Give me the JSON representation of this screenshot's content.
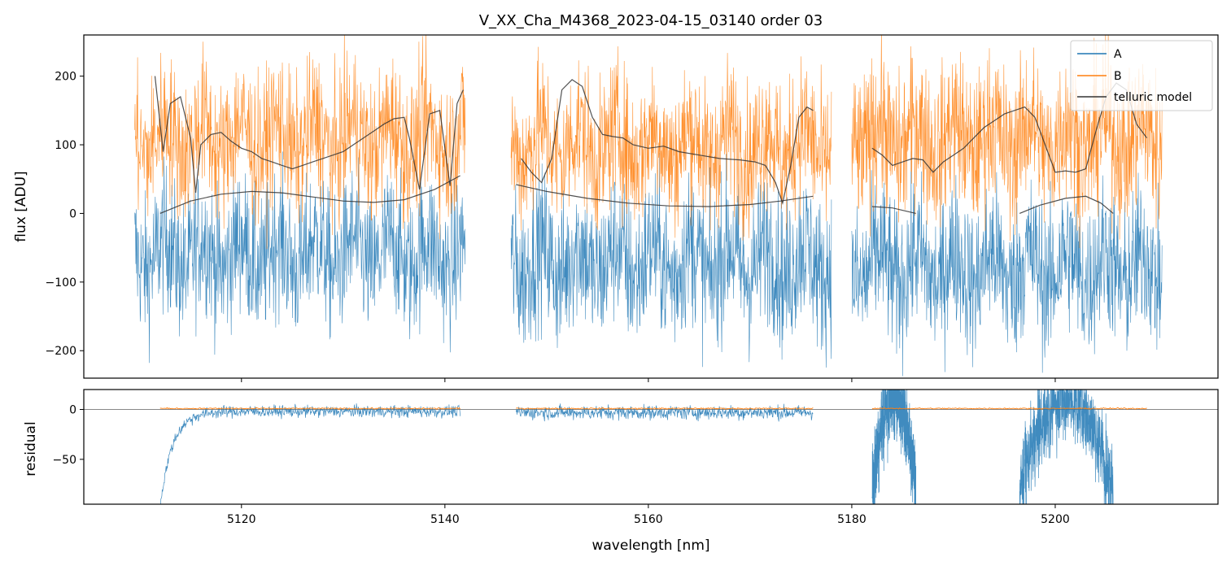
{
  "chart_data": [
    {
      "type": "line",
      "panel": "top",
      "title": "V_XX_Cha_M4368_2023-04-15_03140  order 03",
      "xlabel": "",
      "ylabel": "flux [ADU]",
      "xlim": [
        5104.5,
        5216
      ],
      "ylim": [
        -240,
        260
      ],
      "yticks": [
        -200,
        -100,
        0,
        100,
        200
      ],
      "ytick_labels": [
        "−200",
        "−100",
        "0",
        "100",
        "200"
      ],
      "legend": {
        "placement": "top-right",
        "entries": [
          "A",
          "B",
          "telluric model"
        ]
      },
      "series": [
        {
          "name": "A",
          "color": "#1f77b4",
          "style": "noisy-spectrum",
          "segments": [
            {
              "x": [
                5109.5,
                5142
              ],
              "base": -60,
              "noise": 70
            },
            {
              "x": [
                5146.5,
                5178
              ],
              "base": -70,
              "noise": 75
            },
            {
              "x": [
                5180,
                5210.5
              ],
              "base": -80,
              "noise": 75
            }
          ]
        },
        {
          "name": "B",
          "color": "#ff7f0e",
          "style": "noisy-spectrum",
          "segments": [
            {
              "x": [
                5109.5,
                5142
              ],
              "base": 110,
              "noise": 70
            },
            {
              "x": [
                5146.5,
                5178
              ],
              "base": 100,
              "noise": 70
            },
            {
              "x": [
                5180,
                5210.5
              ],
              "base": 110,
              "noise": 75
            }
          ]
        },
        {
          "name": "telluric model",
          "color": "#333333",
          "upper": [
            {
              "x": [
                5111.5,
                5112.3,
                5113,
                5114,
                5115,
                5115.5,
                5116,
                5117,
                5118,
                5119,
                5120,
                5121,
                5122,
                5123,
                5124,
                5125,
                5126,
                5127,
                5128,
                5129,
                5130,
                5131,
                5132,
                5133,
                5134,
                5135,
                5136,
                5136.5,
                5137.5,
                5138.5,
                5139.5,
                5140.5,
                5141.2,
                5141.8
              ],
              "y": [
                200,
                90,
                160,
                170,
                110,
                30,
                100,
                115,
                118,
                105,
                95,
                90,
                80,
                75,
                70,
                65,
                70,
                75,
                80,
                85,
                90,
                100,
                110,
                120,
                130,
                138,
                140,
                110,
                35,
                145,
                150,
                40,
                160,
                180
              ]
            },
            {
              "x": [
                5147.5,
                5148.5,
                5149.5,
                5150.5,
                5151.5,
                5152.5,
                5153.5,
                5154.5,
                5155.5,
                5156.5,
                5157.5,
                5158.5,
                5160,
                5161.5,
                5163,
                5165,
                5167,
                5169,
                5170.5,
                5171.5,
                5172.5,
                5173.2,
                5174,
                5174.8,
                5175.6,
                5176.2
              ],
              "y": [
                80,
                60,
                45,
                80,
                180,
                195,
                185,
                140,
                115,
                112,
                110,
                100,
                95,
                98,
                90,
                85,
                80,
                78,
                75,
                70,
                45,
                15,
                70,
                140,
                155,
                150
              ]
            },
            {
              "x": [
                5182,
                5183,
                5184,
                5185,
                5186,
                5187,
                5188,
                5189,
                5190,
                5191,
                5192,
                5193,
                5194,
                5195,
                5196,
                5197,
                5198,
                5199,
                5200,
                5201,
                5202,
                5203,
                5204,
                5205,
                5206,
                5207,
                5208,
                5209
              ],
              "y": [
                95,
                85,
                70,
                75,
                80,
                78,
                60,
                75,
                85,
                95,
                110,
                125,
                135,
                145,
                150,
                155,
                140,
                100,
                60,
                62,
                60,
                65,
                120,
                170,
                190,
                180,
                130,
                110
              ]
            }
          ],
          "lower": [
            {
              "x": [
                5112,
                5115,
                5118,
                5121,
                5124,
                5127,
                5130,
                5133,
                5136,
                5139,
                5141.5
              ],
              "y": [
                0,
                18,
                28,
                32,
                30,
                24,
                18,
                16,
                20,
                35,
                55
              ]
            },
            {
              "x": [
                5147,
                5150,
                5154,
                5158,
                5162,
                5166,
                5170,
                5173,
                5176.2
              ],
              "y": [
                42,
                32,
                22,
                15,
                11,
                10,
                13,
                18,
                25
              ]
            },
            {
              "x": [
                5182,
                5184,
                5186.3
              ],
              "y": [
                10,
                8,
                0
              ]
            },
            {
              "x": [
                5196.5,
                5198.5,
                5201,
                5203,
                5204.5,
                5205.7
              ],
              "y": [
                0,
                12,
                22,
                25,
                15,
                0
              ]
            }
          ]
        }
      ]
    },
    {
      "type": "line",
      "panel": "bottom",
      "title": "",
      "xlabel": "wavelength [nm]",
      "ylabel": "residual",
      "xlim": [
        5104.5,
        5216
      ],
      "ylim": [
        -95,
        20
      ],
      "yticks": [
        -50,
        0
      ],
      "ytick_labels": [
        "−50",
        "0"
      ],
      "xticks": [
        5120,
        5140,
        5160,
        5180,
        5200
      ],
      "xtick_labels": [
        "5120",
        "5140",
        "5160",
        "5180",
        "5200"
      ],
      "reference_line": 0,
      "series": [
        {
          "name": "A",
          "color": "#1f77b4",
          "style": "noisy-residual",
          "segments": [
            {
              "x": [
                5112,
                5141.5
              ],
              "base": -2,
              "noise": 5,
              "dip_start": -95
            },
            {
              "x": [
                5147,
                5176.2
              ],
              "base": -3,
              "noise": 6
            },
            {
              "x": [
                5182,
                5186.3
              ],
              "base": -40,
              "noise": 60
            },
            {
              "x": [
                5196.5,
                5205.7
              ],
              "base": -30,
              "noise": 60
            }
          ]
        },
        {
          "name": "B",
          "color": "#ff7f0e",
          "style": "flat-residual",
          "segments": [
            {
              "x": [
                5112,
                5141.5
              ],
              "y": 1
            },
            {
              "x": [
                5147,
                5176.2
              ],
              "y": 1
            },
            {
              "x": [
                5182,
                5209
              ],
              "y": 1
            }
          ]
        }
      ]
    }
  ]
}
